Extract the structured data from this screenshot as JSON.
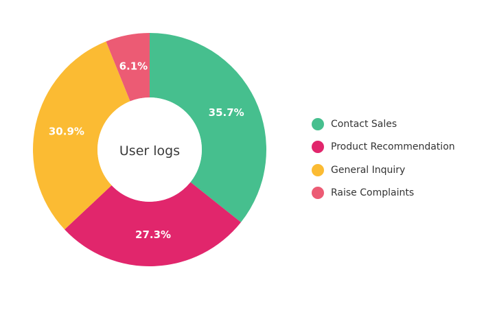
{
  "chart_data": {
    "type": "pie",
    "variant": "donut",
    "center_label": "User logs",
    "categories": [
      "Contact Sales",
      "Product Recommendation",
      "General Inquiry",
      "Raise Complaints"
    ],
    "values": [
      35.7,
      27.3,
      30.9,
      6.1
    ],
    "value_labels": [
      "35.7%",
      "27.3%",
      "30.9%",
      "6.1%"
    ],
    "colors": [
      "#46bf8e",
      "#e1266c",
      "#fbbb33",
      "#ec5b74"
    ],
    "legend_position": "right"
  }
}
